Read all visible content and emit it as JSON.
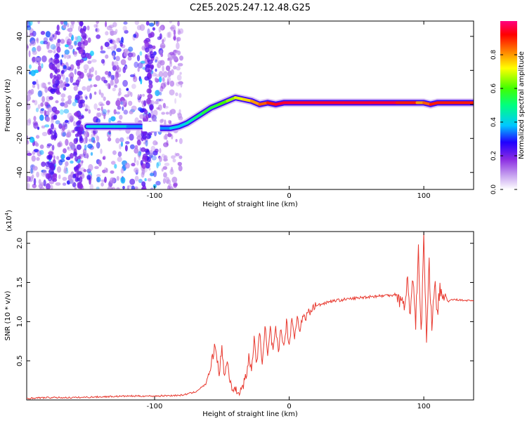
{
  "title": "C2E5.2025.247.12.48.G25",
  "chart_data": [
    {
      "type": "heatmap",
      "title": "C2E5.2025.247.12.48.G25",
      "xlabel": "Height of straight line (km)",
      "ylabel": "Frequency (Hz)",
      "xlim": [
        -195,
        137
      ],
      "ylim": [
        -50,
        49
      ],
      "xticks": [
        -100,
        0,
        100
      ],
      "xtick_labels": [
        "-100",
        "0",
        "100"
      ],
      "yticks": [
        -40,
        -20,
        0,
        20,
        40
      ],
      "ytick_labels": [
        "-40",
        "-20",
        "0",
        "20",
        "40"
      ],
      "ridge": {
        "x": [
          -150,
          -140,
          -130,
          -120,
          -110,
          -95,
          -88,
          -82,
          -76,
          -70,
          -64,
          -58,
          -52,
          -46,
          -40,
          -34,
          -28,
          -22,
          -16,
          -10,
          -4,
          0,
          20,
          40,
          60,
          80,
          95,
          100,
          105,
          110,
          137
        ],
        "y": [
          -13,
          -13,
          -13,
          -13,
          -13,
          -14,
          -14,
          -13,
          -11,
          -8,
          -5,
          -2,
          0,
          2,
          4,
          3,
          2,
          0,
          1,
          0,
          1,
          1,
          1,
          1,
          1,
          1,
          1,
          1,
          0,
          1,
          1
        ],
        "amplitude": [
          0.35,
          0.4,
          0.4,
          0.4,
          0.35,
          0.35,
          0.35,
          0.4,
          0.4,
          0.45,
          0.5,
          0.55,
          0.55,
          0.6,
          0.65,
          0.7,
          0.75,
          0.8,
          0.85,
          0.9,
          0.95,
          0.95,
          0.95,
          0.95,
          0.95,
          0.95,
          0.9,
          0.8,
          0.85,
          0.9,
          0.9
        ]
      },
      "colorbar": {
        "label": "Normalized spectral amplitude",
        "range": [
          0,
          1
        ],
        "ticks": [
          0,
          0.2,
          0.4,
          0.6,
          0.8
        ],
        "tick_labels": [
          "0.0",
          "0.2",
          "0.4",
          "0.6",
          "0.8"
        ],
        "colors": [
          "#ffffff",
          "#c9a6f0",
          "#8a2be2",
          "#4b00d0",
          "#0000ff",
          "#00c8ff",
          "#00ff80",
          "#40ff00",
          "#ffff00",
          "#ff8000",
          "#ff0000",
          "#ff0080"
        ]
      }
    },
    {
      "type": "line",
      "xlabel": "Height of straight line (km)",
      "ylabel": "SNR (10 * v/v)",
      "scale_label": "(x10",
      "scale_exp": "4",
      "scale_close": ")",
      "xlim": [
        -195,
        137
      ],
      "ylim": [
        0,
        2.15
      ],
      "xticks": [
        -100,
        0,
        100
      ],
      "xtick_labels": [
        "-100",
        "0",
        "100"
      ],
      "yticks": [
        0.5,
        1.0,
        1.5,
        2.0
      ],
      "ytick_labels": [
        "0.5",
        "1.0",
        "1.5",
        "2.0"
      ],
      "color": "#e8392f",
      "series": [
        {
          "name": "SNR",
          "x": [
            -195,
            -180,
            -160,
            -140,
            -120,
            -100,
            -80,
            -70,
            -62,
            -58,
            -55,
            -52,
            -50,
            -48,
            -46,
            -44,
            -42,
            -40,
            -38,
            -35,
            -32,
            -30,
            -28,
            -26,
            -24,
            -22,
            -20,
            -18,
            -16,
            -14,
            -12,
            -10,
            -8,
            -6,
            -4,
            -2,
            0,
            2,
            4,
            6,
            8,
            10,
            12,
            14,
            16,
            18,
            20,
            25,
            30,
            40,
            50,
            60,
            70,
            80,
            85,
            88,
            90,
            92,
            94,
            96,
            98,
            100,
            102,
            104,
            106,
            108,
            110,
            112,
            114,
            116,
            118,
            120,
            125,
            130,
            137
          ],
          "y": [
            0.02,
            0.03,
            0.03,
            0.04,
            0.05,
            0.05,
            0.06,
            0.1,
            0.2,
            0.45,
            0.7,
            0.35,
            0.65,
            0.3,
            0.5,
            0.25,
            0.15,
            0.12,
            0.1,
            0.15,
            0.3,
            0.55,
            0.35,
            0.8,
            0.45,
            0.85,
            0.5,
            0.95,
            0.55,
            0.9,
            0.6,
            0.9,
            0.6,
            0.95,
            0.65,
            1.0,
            0.7,
            1.05,
            0.8,
            1.05,
            0.9,
            1.1,
            1.0,
            1.15,
            1.1,
            1.2,
            1.2,
            1.23,
            1.26,
            1.28,
            1.3,
            1.32,
            1.33,
            1.35,
            1.2,
            1.5,
            1.1,
            1.6,
            1.0,
            1.9,
            0.8,
            2.1,
            0.75,
            1.7,
            1.0,
            1.5,
            1.1,
            1.45,
            1.2,
            1.35,
            1.25,
            1.28,
            1.28,
            1.27,
            1.27
          ]
        }
      ]
    }
  ]
}
